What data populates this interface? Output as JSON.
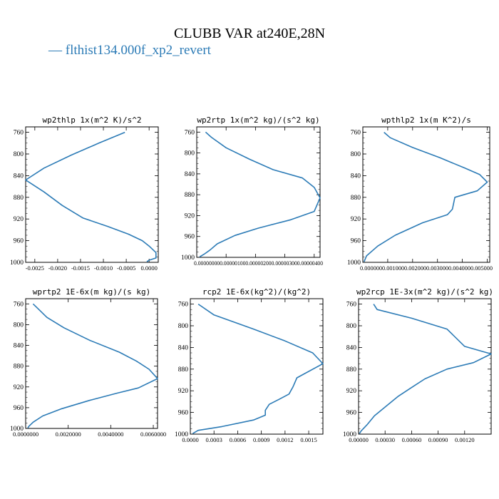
{
  "figure": {
    "title": "CLUBB VAR at240E,28N",
    "legend_label": "— flthist134.000f_xp2_revert",
    "line_color": "#2c7bb6"
  },
  "chart_data": [
    {
      "type": "line",
      "title": "wp2thlp  1x(m^2 K)/s^2",
      "y_ticks": [
        "760",
        "800",
        "840",
        "880",
        "920",
        "960",
        "1000"
      ],
      "x_ticks": [
        "-0.0025",
        "-0.0020",
        "-0.0015",
        "-0.0010",
        "-0.0005",
        "0.0000"
      ],
      "xlim": [
        -0.0027,
        0.0002
      ],
      "ylim": [
        750,
        1000
      ],
      "y_inverted": true,
      "series": [
        {
          "x": [
            -0.00053,
            -0.0011,
            -0.0017,
            -0.0023,
            -0.0027,
            -0.0023,
            -0.0019,
            -0.00145,
            -0.0009,
            -0.00045,
            -0.00015,
            0.0,
            0.00015,
            0.00015,
            0.0,
            -5e-05
          ],
          "y": [
            760,
            780,
            802,
            826,
            848,
            870,
            895,
            918,
            934,
            948,
            960,
            970,
            982,
            992,
            996,
            999
          ]
        }
      ]
    },
    {
      "type": "line",
      "title": "wp2rtp  1x(m^2 kg)/(s^2 kg)",
      "y_ticks": [
        "760",
        "800",
        "840",
        "880",
        "920",
        "960",
        "1000"
      ],
      "x_ticks": [
        "0.000000",
        "0.000001",
        "0.000002",
        "0.000003",
        "0.000004"
      ],
      "x_ticks_display": "0.000000000.000001000.000002000.000003000.00000400",
      "xlim": [
        0.0,
        4.2e-06
      ],
      "ylim": [
        750,
        1000
      ],
      "y_inverted": true,
      "series": [
        {
          "x": [
            3e-07,
            5e-07,
            1e-06,
            1.8e-06,
            2.6e-06,
            3.6e-06,
            4e-06,
            4.2e-06,
            4e-06,
            3.2e-06,
            2.1e-06,
            1.3e-06,
            7e-07,
            4.5e-07,
            2.5e-07,
            1e-07
          ],
          "y": [
            760,
            770,
            790,
            812,
            832,
            848,
            866,
            886,
            912,
            928,
            944,
            958,
            974,
            986,
            994,
            999
          ]
        }
      ]
    },
    {
      "type": "line",
      "title": "wpthlp2  1x(m K^2)/s",
      "y_ticks": [
        "760",
        "800",
        "840",
        "880",
        "920",
        "960",
        "1000"
      ],
      "x_ticks": [
        "0.000000",
        "0.001000",
        "0.002000",
        "0.003000",
        "0.004000",
        "0.005000"
      ],
      "x_ticks_display": "0.0000000.0010000.0020000.0030000.0040000.005000",
      "xlim": [
        0.0,
        0.0051
      ],
      "ylim": [
        750,
        1000
      ],
      "y_inverted": true,
      "series": [
        {
          "x": [
            0.00085,
            0.0011,
            0.002,
            0.0031,
            0.0041,
            0.0047,
            0.005,
            0.0046,
            0.0037,
            0.0036,
            0.0034,
            0.0024,
            0.0013,
            0.0006,
            0.00015,
            5e-05
          ],
          "y": [
            760,
            770,
            788,
            807,
            826,
            838,
            852,
            868,
            880,
            902,
            912,
            927,
            950,
            970,
            988,
            999
          ]
        }
      ]
    },
    {
      "type": "line",
      "title": "wprtp2  1E-6x(m kg)/(s kg)",
      "y_ticks": [
        "760",
        "800",
        "840",
        "880",
        "920",
        "960",
        "1000"
      ],
      "x_ticks": [
        "0.0000000",
        "0.0020000",
        "0.0040000",
        "0.0060000"
      ],
      "xlim": [
        0.0,
        0.0062
      ],
      "ylim": [
        750,
        1000
      ],
      "y_inverted": true,
      "series": [
        {
          "x": [
            0.00035,
            0.0006,
            0.001,
            0.0018,
            0.003,
            0.0044,
            0.0052,
            0.0058,
            0.0062,
            0.0053,
            0.0043,
            0.003,
            0.0017,
            0.0008,
            0.00035,
            0.00015,
            0.0001
          ],
          "y": [
            760,
            770,
            786,
            806,
            830,
            853,
            870,
            886,
            904,
            922,
            932,
            946,
            962,
            976,
            988,
            996,
            999
          ]
        }
      ]
    },
    {
      "type": "line",
      "title": "rcp2  1E-6x(kg^2)/(kg^2)",
      "y_ticks": [
        "760",
        "800",
        "840",
        "880",
        "920",
        "960",
        "1000"
      ],
      "x_ticks": [
        "0.0000",
        "0.0003",
        "0.0006",
        "0.0009",
        "0.0012",
        "0.0015"
      ],
      "xlim": [
        0.0,
        0.00168
      ],
      "ylim": [
        750,
        1000
      ],
      "y_inverted": true,
      "series": [
        {
          "x": [
            0.0001,
            0.0003,
            0.0008,
            0.0012,
            0.00155,
            0.00168,
            0.00135,
            0.0013,
            0.00125,
            0.00112,
            0.001,
            0.00095,
            0.00095,
            0.0008,
            0.0004,
            0.0001,
            3e-05
          ],
          "y": [
            760,
            780,
            806,
            828,
            850,
            870,
            896,
            913,
            926,
            936,
            945,
            956,
            965,
            974,
            986,
            993,
            999
          ]
        }
      ]
    },
    {
      "type": "line",
      "title": "wp2rcp  1E-3x(m^2 kg)/(s^2 kg)",
      "y_ticks": [
        "760",
        "800",
        "840",
        "880",
        "920",
        "960",
        "1000"
      ],
      "x_ticks": [
        "0.00000",
        "0.00030",
        "0.00060",
        "0.00090",
        "0.00120"
      ],
      "xlim": [
        0.0,
        0.0015
      ],
      "ylim": [
        750,
        1000
      ],
      "y_inverted": true,
      "series": [
        {
          "x": [
            0.00017,
            0.00021,
            0.0006,
            0.001,
            0.0012,
            0.0015,
            0.0013,
            0.001,
            0.00075,
            0.0006,
            0.00045,
            0.0003,
            0.00018,
            0.0001,
            3e-05,
            1e-05
          ],
          "y": [
            760,
            770,
            786,
            806,
            838,
            852,
            868,
            880,
            898,
            914,
            930,
            950,
            966,
            982,
            994,
            999
          ]
        }
      ]
    }
  ]
}
